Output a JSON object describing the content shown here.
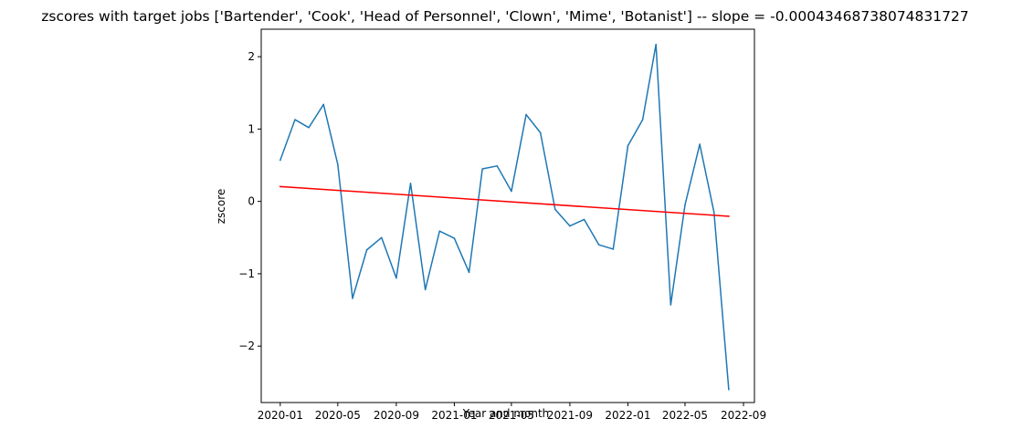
{
  "chart_data": {
    "type": "line",
    "title": "zscores with target jobs ['Bartender', 'Cook', 'Head of Personnel', 'Clown', 'Mime', 'Botanist'] -- slope = -0.00043468738074831727",
    "xlabel": "Year and month",
    "ylabel": "zscore",
    "xlim": [
      "2019-11-22",
      "2022-09-24"
    ],
    "ylim": [
      -2.78,
      2.38
    ],
    "x_ticks": [
      "2020-01",
      "2020-05",
      "2020-09",
      "2021-01",
      "2021-05",
      "2021-09",
      "2022-01",
      "2022-05",
      "2022-09"
    ],
    "y_ticks": [
      2,
      1,
      0,
      -1,
      -2
    ],
    "y_tick_labels": [
      "2",
      "1",
      "0",
      "−1",
      "−2"
    ],
    "grid": false,
    "series": [
      {
        "color": "#1f77b4",
        "x": [
          "2020-01",
          "2020-02",
          "2020-03",
          "2020-04",
          "2020-05",
          "2020-06",
          "2020-07",
          "2020-08",
          "2020-09",
          "2020-10",
          "2020-11",
          "2020-12",
          "2021-01",
          "2021-02",
          "2021-03",
          "2021-04",
          "2021-05",
          "2021-06",
          "2021-07",
          "2021-08",
          "2021-09",
          "2021-10",
          "2021-11",
          "2021-12",
          "2022-01",
          "2022-02",
          "2022-03",
          "2022-04",
          "2022-05",
          "2022-06",
          "2022-07",
          "2022-08"
        ],
        "values": [
          0.57,
          1.13,
          1.02,
          1.34,
          0.51,
          -1.34,
          -0.67,
          -0.5,
          -1.06,
          0.25,
          -1.22,
          -0.41,
          -0.51,
          -0.98,
          0.45,
          0.49,
          0.14,
          1.2,
          0.95,
          -0.11,
          -0.34,
          -0.25,
          -0.6,
          -0.66,
          0.77,
          1.13,
          2.17,
          -1.43,
          -0.05,
          0.79,
          -0.15,
          -2.6
        ]
      },
      {
        "color": "#ff0000",
        "x": [
          "2020-01",
          "2022-08"
        ],
        "values": [
          0.205,
          -0.205
        ]
      }
    ]
  }
}
